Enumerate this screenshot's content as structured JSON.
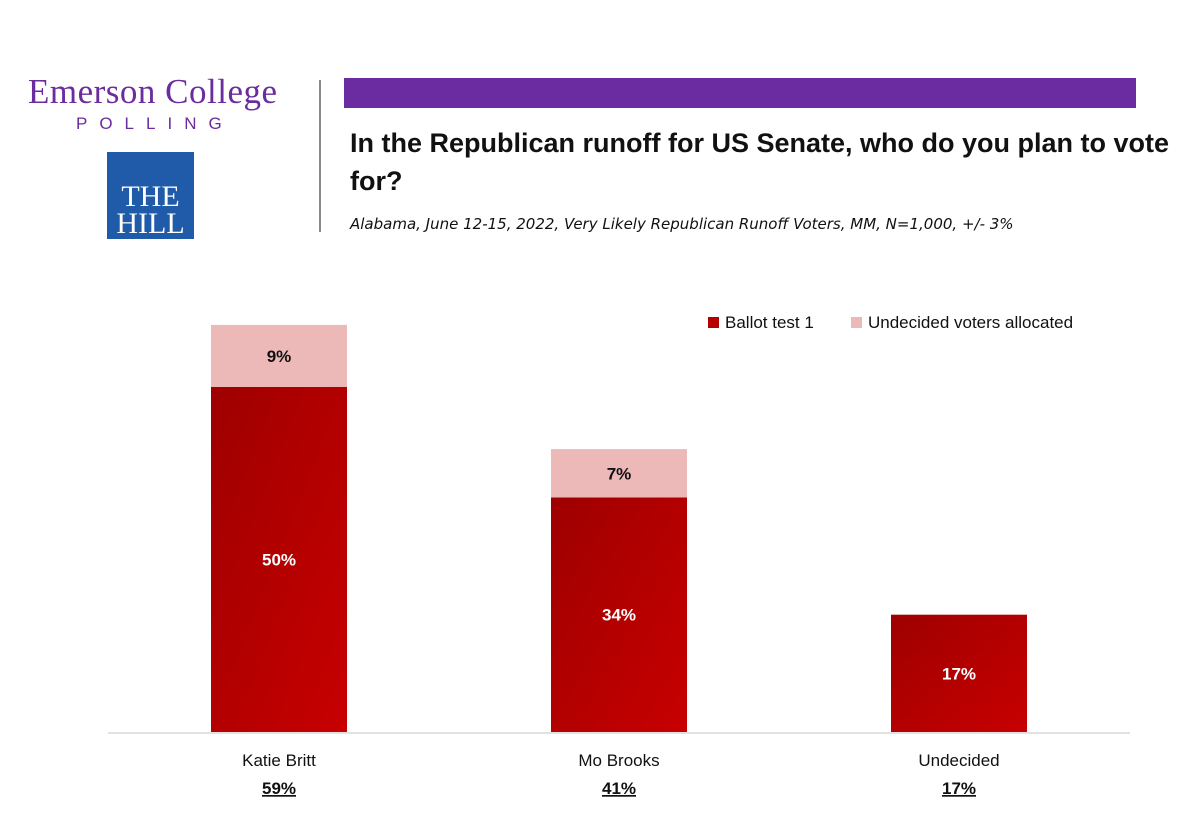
{
  "header": {
    "brand_name": "Emerson College",
    "brand_sub": "POLLING",
    "partner_logo_line1": "THE",
    "partner_logo_line2": "HILL",
    "title": "In the Republican runoff for US Senate, who do you plan to vote for?",
    "subtitle": "Alabama, June 12-15, 2022, Very Likely Republican Runoff Voters, MM, N=1,000, +/- 3%"
  },
  "colors": {
    "accent_purple": "#6a2ca0",
    "ballot_red": "#b40000",
    "allocated_pink": "#edb8b8"
  },
  "chart_data": {
    "type": "bar",
    "stacked": true,
    "title": "In the Republican runoff for US Senate, who do you plan to vote for?",
    "categories": [
      "Katie Britt",
      "Mo Brooks",
      "Undecided"
    ],
    "totals_labels": [
      "59%",
      "41%",
      "17%"
    ],
    "series": [
      {
        "name": "Ballot test 1",
        "values": [
          50,
          34,
          17
        ],
        "labels": [
          "50%",
          "34%",
          "17%"
        ],
        "color": "#b40000"
      },
      {
        "name": "Undecided voters allocated",
        "values": [
          9,
          7,
          0
        ],
        "labels": [
          "9%",
          "7%",
          ""
        ],
        "color": "#edb8b8"
      }
    ],
    "ylim": [
      0,
      60
    ],
    "grid": false,
    "legend_position": "top-right"
  }
}
